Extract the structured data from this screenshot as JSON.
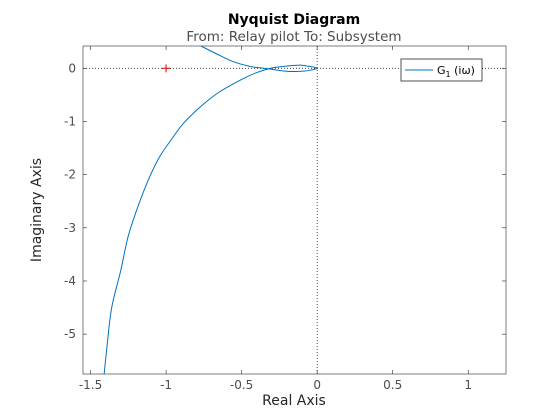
{
  "chart_data": {
    "type": "line",
    "title": "Nyquist Diagram",
    "subtitle": "From: Relay pilot  To: Subsystem",
    "xlabel": "Real Axis",
    "ylabel": "Imaginary Axis",
    "xlim": [
      -1.55,
      1.25
    ],
    "ylim": [
      -5.75,
      0.42
    ],
    "xticks": [
      -1.5,
      -1,
      -0.5,
      0,
      0.5,
      1
    ],
    "xtick_labels": [
      "-1.5",
      "-1",
      "-0.5",
      "0",
      "0.5",
      "1"
    ],
    "yticks": [
      0,
      -1,
      -2,
      -3,
      -4,
      -5
    ],
    "ytick_labels": [
      "0",
      "-1",
      "-2",
      "-3",
      "-4",
      "-5"
    ],
    "grid": false,
    "critical_point": {
      "x": -1,
      "y": 0,
      "marker": "+",
      "color": "#d62728"
    },
    "legend": {
      "position": "top-right",
      "label_main": "G",
      "label_sub": "1",
      "label_tail": " (iω)"
    },
    "series": [
      {
        "color": "#0072bd",
        "x": [
          -0.77,
          -0.65,
          -0.55,
          -0.45,
          -0.38,
          -0.32,
          -0.25,
          -0.17,
          -0.08,
          -0.02,
          0.0,
          -0.02,
          -0.06,
          -0.11,
          -0.17,
          -0.24,
          -0.31,
          -0.4,
          -0.48,
          -0.56,
          -0.65,
          -0.73,
          -0.81,
          -0.89,
          -0.96,
          -1.04,
          -1.11,
          -1.18,
          -1.25,
          -1.3,
          -1.36,
          -1.39,
          -1.41
        ],
        "y": [
          0.42,
          0.25,
          0.12,
          0.04,
          0.01,
          -0.01,
          -0.04,
          -0.06,
          -0.05,
          -0.02,
          0.0,
          0.02,
          0.04,
          0.06,
          0.05,
          0.03,
          0.0,
          -0.08,
          -0.18,
          -0.3,
          -0.45,
          -0.62,
          -0.82,
          -1.05,
          -1.32,
          -1.65,
          -2.05,
          -2.55,
          -3.15,
          -3.8,
          -4.5,
          -5.2,
          -5.75
        ]
      }
    ]
  }
}
